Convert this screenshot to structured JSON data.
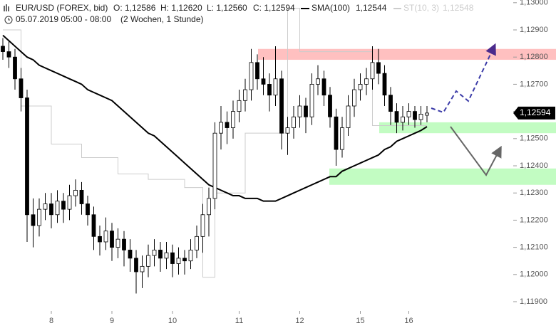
{
  "chart_data": {
    "type": "candlestick",
    "title": "EUR/USD (FOREX, bid)",
    "ohlc_labels": [
      "O: 1,12586",
      "H: 1,12620",
      "L: 1,12560",
      "C: 1,12594"
    ],
    "subtitle": "05.07.2019 05:00 - 08:00",
    "period": "(2 Wochen, 1 Stunde)",
    "categories": [
      null,
      null,
      null,
      null,
      null,
      null,
      null,
      null,
      "8",
      null,
      null,
      null,
      null,
      null,
      null,
      null,
      null,
      null,
      "9",
      null,
      null,
      null,
      null,
      null,
      null,
      null,
      null,
      null,
      "10",
      null,
      null,
      null,
      null,
      null,
      null,
      null,
      null,
      null,
      null,
      "11",
      null,
      null,
      null,
      null,
      null,
      null,
      null,
      null,
      null,
      "12",
      null,
      null,
      null,
      null,
      null,
      null,
      null,
      null,
      null,
      "15",
      null,
      null,
      null,
      null,
      null,
      null,
      null,
      "16",
      null,
      null,
      null
    ],
    "open": [
      1.1284,
      1.1282,
      1.128,
      1.1272,
      1.1265,
      1.1222,
      1.1218,
      1.1224,
      1.1226,
      1.1222,
      1.1227,
      1.1224,
      1.1229,
      1.1231,
      1.1226,
      1.1222,
      1.1214,
      1.1212,
      1.1216,
      1.121,
      1.1213,
      1.1209,
      1.1206,
      1.1201,
      1.1203,
      1.1207,
      1.1209,
      1.1206,
      1.1208,
      1.1204,
      1.1206,
      1.1205,
      1.1209,
      1.1214,
      1.1222,
      1.1228,
      1.1252,
      1.1256,
      1.1254,
      1.126,
      1.1264,
      1.1268,
      1.1278,
      1.1272,
      1.127,
      1.1266,
      1.1272,
      1.1252,
      1.1254,
      1.1258,
      1.1262,
      1.1258,
      1.127,
      1.1272,
      1.1266,
      1.1258,
      1.1246,
      1.1254,
      1.1262,
      1.1268,
      1.127,
      1.1272,
      1.1278,
      1.1274,
      1.1266,
      1.126,
      1.1256,
      1.1258,
      1.126,
      1.1257,
      1.12586
    ],
    "high": [
      1.1287,
      1.1286,
      1.1283,
      1.1276,
      1.1268,
      1.1228,
      1.1228,
      1.123,
      1.123,
      1.1231,
      1.123,
      1.1233,
      1.1235,
      1.1234,
      1.1229,
      1.1225,
      1.1218,
      1.1221,
      1.1219,
      1.1217,
      1.1216,
      1.1213,
      1.1209,
      1.1207,
      1.1211,
      1.1213,
      1.1212,
      1.1212,
      1.1211,
      1.121,
      1.1209,
      1.1213,
      1.1218,
      1.1226,
      1.1232,
      1.1256,
      1.1262,
      1.126,
      1.1264,
      1.1268,
      1.1272,
      1.1283,
      1.1281,
      1.128,
      1.1274,
      1.1284,
      1.1275,
      1.1258,
      1.1262,
      1.1266,
      1.1265,
      1.1274,
      1.1277,
      1.1275,
      1.1269,
      1.1261,
      1.1258,
      1.1266,
      1.1272,
      1.1274,
      1.1276,
      1.1284,
      1.1283,
      1.1277,
      1.1269,
      1.1263,
      1.1262,
      1.1263,
      1.1262,
      1.1262,
      1.1262
    ],
    "low": [
      1.1279,
      1.1276,
      1.1268,
      1.126,
      1.1212,
      1.121,
      1.1214,
      1.122,
      1.1217,
      1.1219,
      1.1219,
      1.122,
      1.1225,
      1.1222,
      1.1218,
      1.1209,
      1.1207,
      1.1209,
      1.1205,
      1.1206,
      1.1203,
      1.1201,
      1.1193,
      1.1195,
      1.1199,
      1.1203,
      1.1201,
      1.1202,
      1.1199,
      1.12,
      1.12,
      1.1202,
      1.1206,
      1.1208,
      1.1214,
      1.1224,
      1.1246,
      1.1248,
      1.125,
      1.1256,
      1.126,
      1.1264,
      1.1268,
      1.1266,
      1.126,
      1.1262,
      1.1246,
      1.1244,
      1.125,
      1.1254,
      1.1252,
      1.1255,
      1.1266,
      1.1262,
      1.1254,
      1.124,
      1.1243,
      1.1251,
      1.1258,
      1.1264,
      1.1266,
      1.1268,
      1.127,
      1.1262,
      1.1255,
      1.1252,
      1.1253,
      1.1255,
      1.1254,
      1.1255,
      1.1256
    ],
    "close": [
      1.1282,
      1.128,
      1.1272,
      1.1265,
      1.1222,
      1.1218,
      1.1224,
      1.1226,
      1.1222,
      1.1227,
      1.1224,
      1.1229,
      1.1231,
      1.1226,
      1.1222,
      1.1214,
      1.1212,
      1.1216,
      1.121,
      1.1213,
      1.1209,
      1.1206,
      1.1201,
      1.1203,
      1.1207,
      1.1209,
      1.1206,
      1.1208,
      1.1204,
      1.1206,
      1.1205,
      1.1209,
      1.1214,
      1.1222,
      1.1228,
      1.1252,
      1.1256,
      1.1254,
      1.126,
      1.1264,
      1.1268,
      1.1278,
      1.1272,
      1.127,
      1.1266,
      1.1272,
      1.1252,
      1.1254,
      1.1258,
      1.1262,
      1.1258,
      1.127,
      1.1272,
      1.1266,
      1.1258,
      1.1246,
      1.1254,
      1.1262,
      1.1268,
      1.127,
      1.1272,
      1.1278,
      1.1274,
      1.1266,
      1.126,
      1.1256,
      1.1258,
      1.126,
      1.1257,
      1.1259,
      1.12594
    ],
    "series": [
      {
        "name": "SMA(100)",
        "value_label": "1,12544",
        "color": "#000000",
        "width": 2,
        "values": [
          1.1288,
          1.1286,
          1.1284,
          1.1282,
          1.128,
          1.1279,
          1.1277,
          1.1276,
          1.1275,
          1.1274,
          1.1273,
          1.1272,
          1.1271,
          1.127,
          1.1268,
          1.1267,
          1.1266,
          1.1265,
          1.1264,
          1.1262,
          1.126,
          1.1258,
          1.1256,
          1.1254,
          1.1252,
          1.1251,
          1.1249,
          1.1247,
          1.1245,
          1.1243,
          1.1241,
          1.1239,
          1.1237,
          1.1235,
          1.1233,
          1.1232,
          1.1231,
          1.123,
          1.1229,
          1.1229,
          1.1228,
          1.1228,
          1.1228,
          1.1227,
          1.1227,
          1.1227,
          1.1228,
          1.1229,
          1.123,
          1.1231,
          1.1232,
          1.1233,
          1.1234,
          1.1235,
          1.1236,
          1.1236,
          1.1238,
          1.1239,
          1.124,
          1.1241,
          1.1242,
          1.1243,
          1.1244,
          1.1246,
          1.1247,
          1.1249,
          1.125,
          1.1251,
          1.1252,
          1.1253,
          1.12544
        ]
      },
      {
        "name": "ST(10, 3)",
        "value_label": "1,12548",
        "color": "#cccccc",
        "width": 1,
        "step": true,
        "values": [
          1.129,
          1.129,
          1.129,
          1.1262,
          1.1262,
          1.1262,
          1.1262,
          1.1262,
          1.1248,
          1.1248,
          1.1248,
          1.1248,
          1.1248,
          1.1243,
          1.1243,
          1.1243,
          1.1243,
          1.1243,
          1.1243,
          1.1237,
          1.1237,
          1.1237,
          1.1237,
          1.1237,
          1.1235,
          1.1235,
          1.1235,
          1.1235,
          1.1235,
          1.1235,
          1.1232,
          1.1232,
          1.1232,
          1.1199,
          1.1199,
          1.123,
          1.123,
          1.123,
          1.123,
          1.123,
          1.1252,
          1.1252,
          1.1252,
          1.1252,
          1.1252,
          1.1252,
          1.1252,
          1.1298,
          1.1298,
          1.1282,
          1.1282,
          1.1282,
          1.1282,
          1.1282,
          1.1282,
          1.1282,
          1.1282,
          1.1282,
          1.1282,
          1.1282,
          1.1282,
          1.12548,
          1.12548,
          1.12548,
          1.12548,
          1.12548,
          1.12548,
          1.12548,
          1.12548,
          1.12548,
          1.12548
        ]
      }
    ],
    "zones": [
      {
        "high": 1.1283,
        "low": 1.1279,
        "color": "#ffc0c0"
      },
      {
        "high": 1.1256,
        "low": 1.1252,
        "color": "#c2fcc2"
      },
      {
        "high": 1.1239,
        "low": 1.1233,
        "color": "#c2fcc2"
      }
    ],
    "last_price": {
      "value": 1.12594,
      "label": "1,12594"
    },
    "up_color": "#ffffff",
    "down_color": "#000000",
    "ylim": [
      1.11866,
      1.1301
    ],
    "yticks": [
      {
        "value": 1.13,
        "label": "1,13000"
      },
      {
        "value": 1.129,
        "label": "1,12900"
      },
      {
        "value": 1.128,
        "label": "1,12800"
      },
      {
        "value": 1.127,
        "label": "1,12700"
      },
      {
        "value": 1.126,
        "label": "1,12600"
      },
      {
        "value": 1.125,
        "label": "1,12500"
      },
      {
        "value": 1.124,
        "label": "1,12400"
      },
      {
        "value": 1.123,
        "label": "1,12300"
      },
      {
        "value": 1.122,
        "label": "1,12200"
      },
      {
        "value": 1.121,
        "label": "1,12100"
      },
      {
        "value": 1.12,
        "label": "1,12000"
      },
      {
        "value": 1.119,
        "label": "1,11900"
      }
    ]
  }
}
